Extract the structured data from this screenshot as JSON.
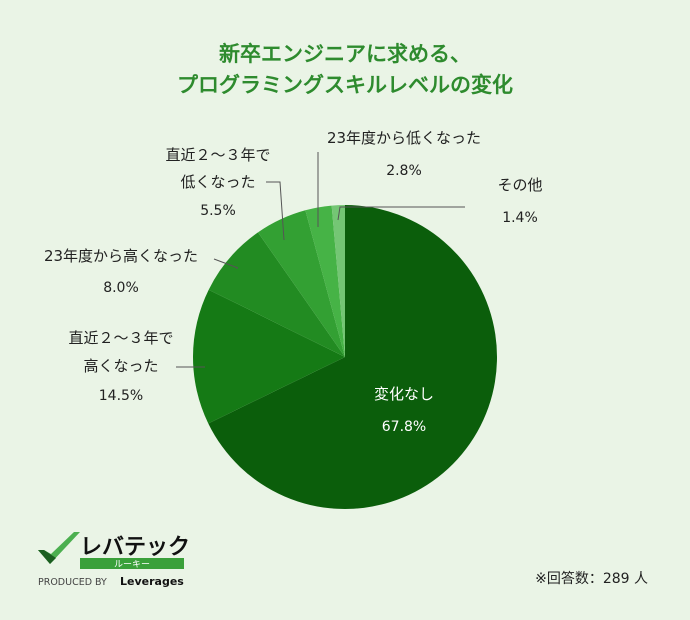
{
  "title": {
    "line1": "新卒エンジニアに求める、",
    "line2": "プログラミングスキルレベルの変化"
  },
  "chart_data": {
    "type": "pie",
    "slices": [
      {
        "label": [
          "変化なし"
        ],
        "value": 67.8,
        "display": "67.8%",
        "color": "#0b5e0b"
      },
      {
        "label": [
          "直近２～３年で",
          "高くなった"
        ],
        "value": 14.5,
        "display": "14.5%",
        "color": "#157a15"
      },
      {
        "label": [
          "23年度から高くなった"
        ],
        "value": 8.0,
        "display": "8.0%",
        "color": "#228b22"
      },
      {
        "label": [
          "直近２～３年で",
          "低くなった"
        ],
        "value": 5.5,
        "display": "5.5%",
        "color": "#33a033"
      },
      {
        "label": [
          "23年度から低くなった"
        ],
        "value": 2.8,
        "display": "2.8%",
        "color": "#46b346"
      },
      {
        "label": [
          "その他"
        ],
        "value": 1.4,
        "display": "1.4%",
        "color": "#74c674"
      }
    ]
  },
  "footnote": "※回答数：289 人",
  "logo": {
    "brand": "レバテック",
    "sub": "ルーキー",
    "produced_by": "PRODUCED BY",
    "company": "Leverages"
  }
}
